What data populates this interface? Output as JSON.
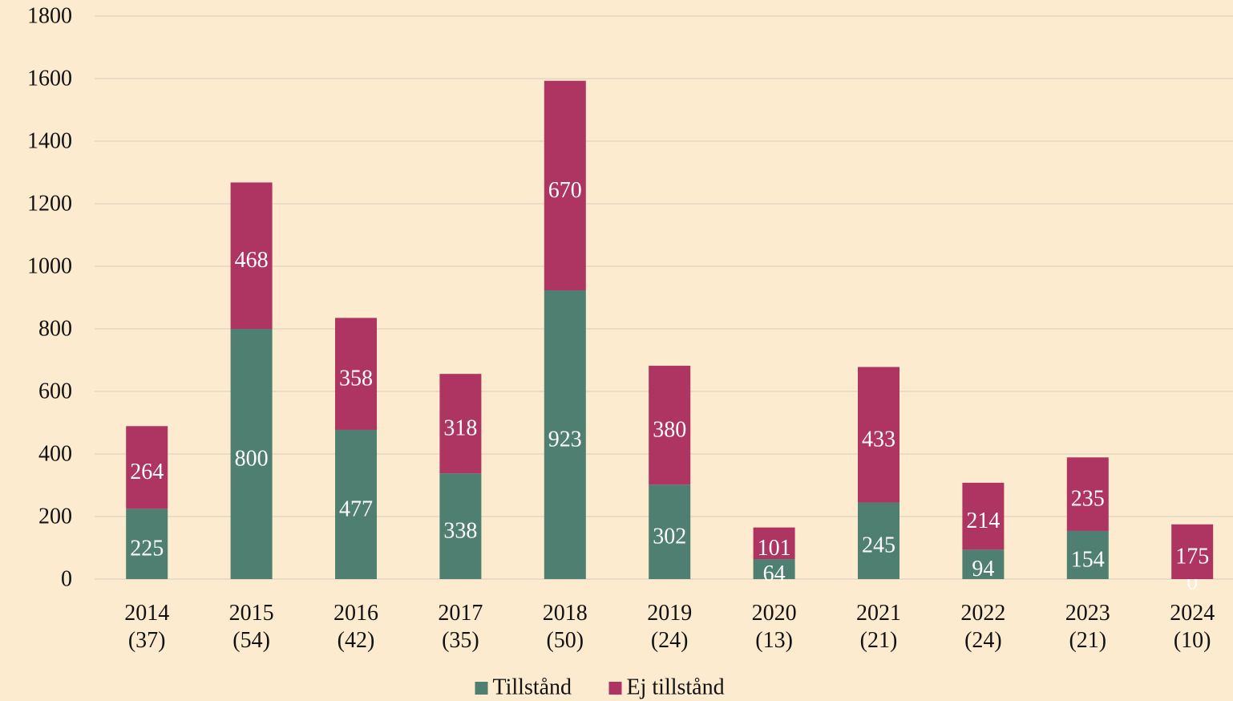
{
  "chart_data": {
    "type": "stacked_bar",
    "categories": [
      "2014\n(37)",
      "2015\n(54)",
      "2016\n(42)",
      "2017\n(35)",
      "2018\n(50)",
      "2019\n(24)",
      "2020\n(13)",
      "2021\n(21)",
      "2022\n(24)",
      "2023\n(21)",
      "2024\n(10)"
    ],
    "series": [
      {
        "name": "Tillstånd",
        "color": "#4e7f71",
        "values": [
          225,
          800,
          477,
          338,
          923,
          302,
          64,
          245,
          94,
          154,
          0
        ]
      },
      {
        "name": "Ej tillstånd",
        "color": "#ae3562",
        "values": [
          264,
          468,
          358,
          318,
          670,
          380,
          101,
          433,
          214,
          235,
          175
        ]
      }
    ],
    "ylim": [
      0,
      1800
    ],
    "yticks": [
      0,
      200,
      400,
      600,
      800,
      1000,
      1200,
      1400,
      1600,
      1800
    ],
    "grid": true,
    "legend": "bottom"
  }
}
